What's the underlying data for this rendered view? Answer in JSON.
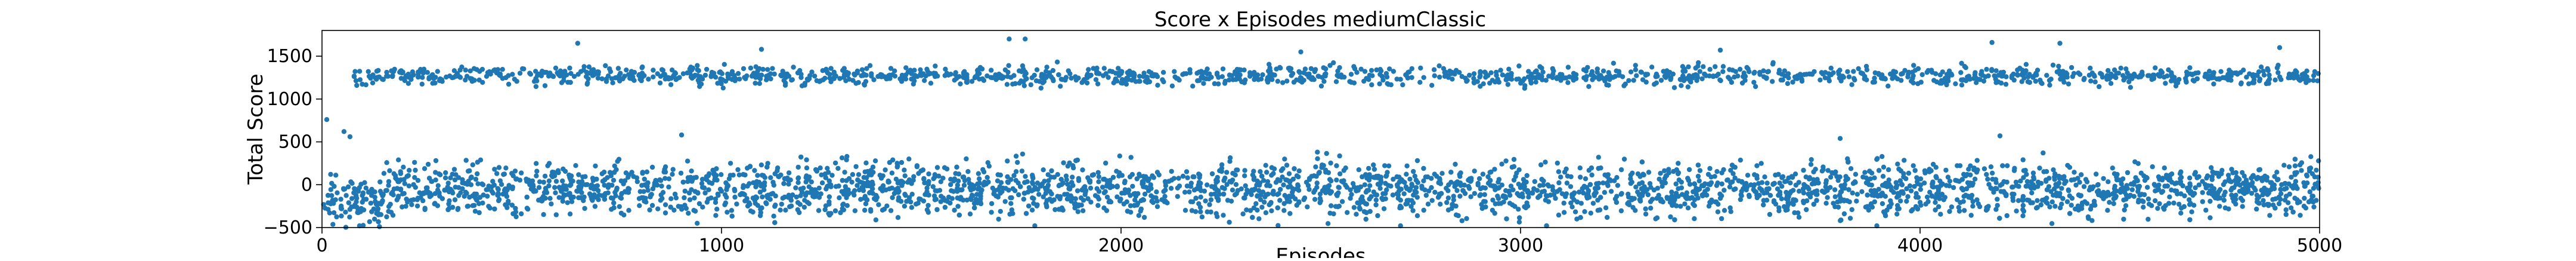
{
  "chart_data": {
    "type": "scatter",
    "title": "Score x Episodes mediumClassic",
    "xlabel": "Episodes",
    "ylabel": "Total Score",
    "xlim": [
      0,
      5000
    ],
    "ylim": [
      -500,
      1800
    ],
    "xticks": [
      0,
      1000,
      2000,
      3000,
      4000,
      5000
    ],
    "yticks": [
      -500,
      0,
      500,
      1000,
      1500
    ],
    "grid": false,
    "marker_color": "#1f77b4",
    "series": [
      {
        "clusters": [
          {
            "label": "low",
            "x_range": [
              0,
              5000
            ],
            "y_center": -50,
            "y_spread": 170,
            "density": "dense"
          },
          {
            "label": "high",
            "x_range": [
              80,
              5000
            ],
            "y_center": 1270,
            "y_spread": 60,
            "density": "moderate"
          }
        ],
        "sample_points": [
          {
            "x": 12,
            "y": 760
          },
          {
            "x": 55,
            "y": 620
          },
          {
            "x": 70,
            "y": 560
          },
          {
            "x": 640,
            "y": 1650
          },
          {
            "x": 1720,
            "y": 1700
          },
          {
            "x": 1760,
            "y": 1700
          },
          {
            "x": 4180,
            "y": 1660
          },
          {
            "x": 4350,
            "y": 1650
          },
          {
            "x": 4900,
            "y": 1600
          },
          {
            "x": 900,
            "y": 580
          },
          {
            "x": 3800,
            "y": 540
          },
          {
            "x": 4200,
            "y": 570
          },
          {
            "x": 1100,
            "y": 1580
          },
          {
            "x": 2450,
            "y": 1550
          },
          {
            "x": 3500,
            "y": 1570
          }
        ]
      }
    ]
  }
}
